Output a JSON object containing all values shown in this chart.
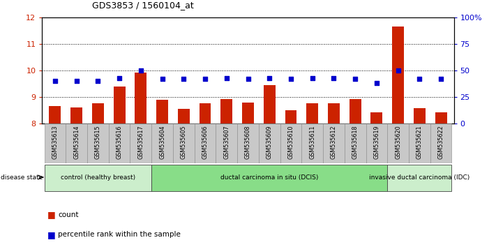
{
  "title": "GDS3853 / 1560104_at",
  "samples": [
    "GSM535613",
    "GSM535614",
    "GSM535615",
    "GSM535616",
    "GSM535617",
    "GSM535604",
    "GSM535605",
    "GSM535606",
    "GSM535607",
    "GSM535608",
    "GSM535609",
    "GSM535610",
    "GSM535611",
    "GSM535612",
    "GSM535618",
    "GSM535619",
    "GSM535620",
    "GSM535621",
    "GSM535622"
  ],
  "bar_values": [
    8.65,
    8.6,
    8.75,
    9.4,
    9.93,
    8.9,
    8.55,
    8.75,
    8.93,
    8.78,
    9.45,
    8.5,
    8.75,
    8.75,
    8.93,
    8.43,
    11.65,
    8.57,
    8.43
  ],
  "dot_values": [
    40,
    40,
    40,
    43,
    50,
    42,
    42,
    42,
    43,
    42,
    43,
    42,
    43,
    43,
    42,
    38,
    50,
    42,
    42
  ],
  "ylim_left": [
    8,
    12
  ],
  "ylim_right": [
    0,
    100
  ],
  "yticks_left": [
    8,
    9,
    10,
    11,
    12
  ],
  "yticks_right": [
    0,
    25,
    50,
    75,
    100
  ],
  "bar_color": "#cc2200",
  "dot_color": "#0000cc",
  "groups": [
    {
      "label": "control (healthy breast)",
      "start": 0,
      "end": 5,
      "color": "#cceecc"
    },
    {
      "label": "ductal carcinoma in situ (DCIS)",
      "start": 5,
      "end": 16,
      "color": "#88dd88"
    },
    {
      "label": "invasive ductal carcinoma (IDC)",
      "start": 16,
      "end": 19,
      "color": "#cceecc"
    }
  ],
  "axis_color_left": "#cc2200",
  "axis_color_right": "#0000cc",
  "xtick_bg": "#c8c8c8"
}
